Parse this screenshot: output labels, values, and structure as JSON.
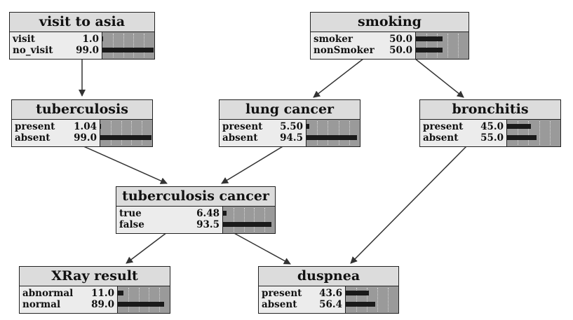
{
  "nodes": [
    {
      "id": "visit-to-asia",
      "title": "visit to asia",
      "states": [
        {
          "label": "visit",
          "value": "1.0",
          "pct": 1.0
        },
        {
          "label": "no_visit",
          "value": "99.0",
          "pct": 99.0
        }
      ]
    },
    {
      "id": "smoking",
      "title": "smoking",
      "states": [
        {
          "label": "smoker",
          "value": "50.0",
          "pct": 50.0
        },
        {
          "label": "nonSmoker",
          "value": "50.0",
          "pct": 50.0
        }
      ]
    },
    {
      "id": "tuberculosis",
      "title": "tuberculosis",
      "states": [
        {
          "label": "present",
          "value": "1.04",
          "pct": 1.04
        },
        {
          "label": "absent",
          "value": "99.0",
          "pct": 99.0
        }
      ]
    },
    {
      "id": "lung-cancer",
      "title": "lung cancer",
      "states": [
        {
          "label": "present",
          "value": "5.50",
          "pct": 5.5
        },
        {
          "label": "absent",
          "value": "94.5",
          "pct": 94.5
        }
      ]
    },
    {
      "id": "bronchitis",
      "title": "bronchitis",
      "states": [
        {
          "label": "present",
          "value": "45.0",
          "pct": 45.0
        },
        {
          "label": "absent",
          "value": "55.0",
          "pct": 55.0
        }
      ]
    },
    {
      "id": "tuberculosis-cancer",
      "title": "tuberculosis cancer",
      "states": [
        {
          "label": "true",
          "value": "6.48",
          "pct": 6.48
        },
        {
          "label": "false",
          "value": "93.5",
          "pct": 93.5
        }
      ]
    },
    {
      "id": "xray-result",
      "title": "XRay result",
      "states": [
        {
          "label": "abnormal",
          "value": "11.0",
          "pct": 11.0
        },
        {
          "label": "normal",
          "value": "89.0",
          "pct": 89.0
        }
      ]
    },
    {
      "id": "duspnea",
      "title": "duspnea",
      "states": [
        {
          "label": "present",
          "value": "43.6",
          "pct": 43.6
        },
        {
          "label": "absent",
          "value": "56.4",
          "pct": 56.4
        }
      ]
    }
  ],
  "edges": [
    {
      "from": "visit-to-asia",
      "to": "tuberculosis"
    },
    {
      "from": "smoking",
      "to": "lung-cancer"
    },
    {
      "from": "smoking",
      "to": "bronchitis"
    },
    {
      "from": "tuberculosis",
      "to": "tuberculosis-cancer"
    },
    {
      "from": "lung-cancer",
      "to": "tuberculosis-cancer"
    },
    {
      "from": "tuberculosis-cancer",
      "to": "xray-result"
    },
    {
      "from": "tuberculosis-cancer",
      "to": "duspnea"
    },
    {
      "from": "bronchitis",
      "to": "duspnea"
    }
  ]
}
